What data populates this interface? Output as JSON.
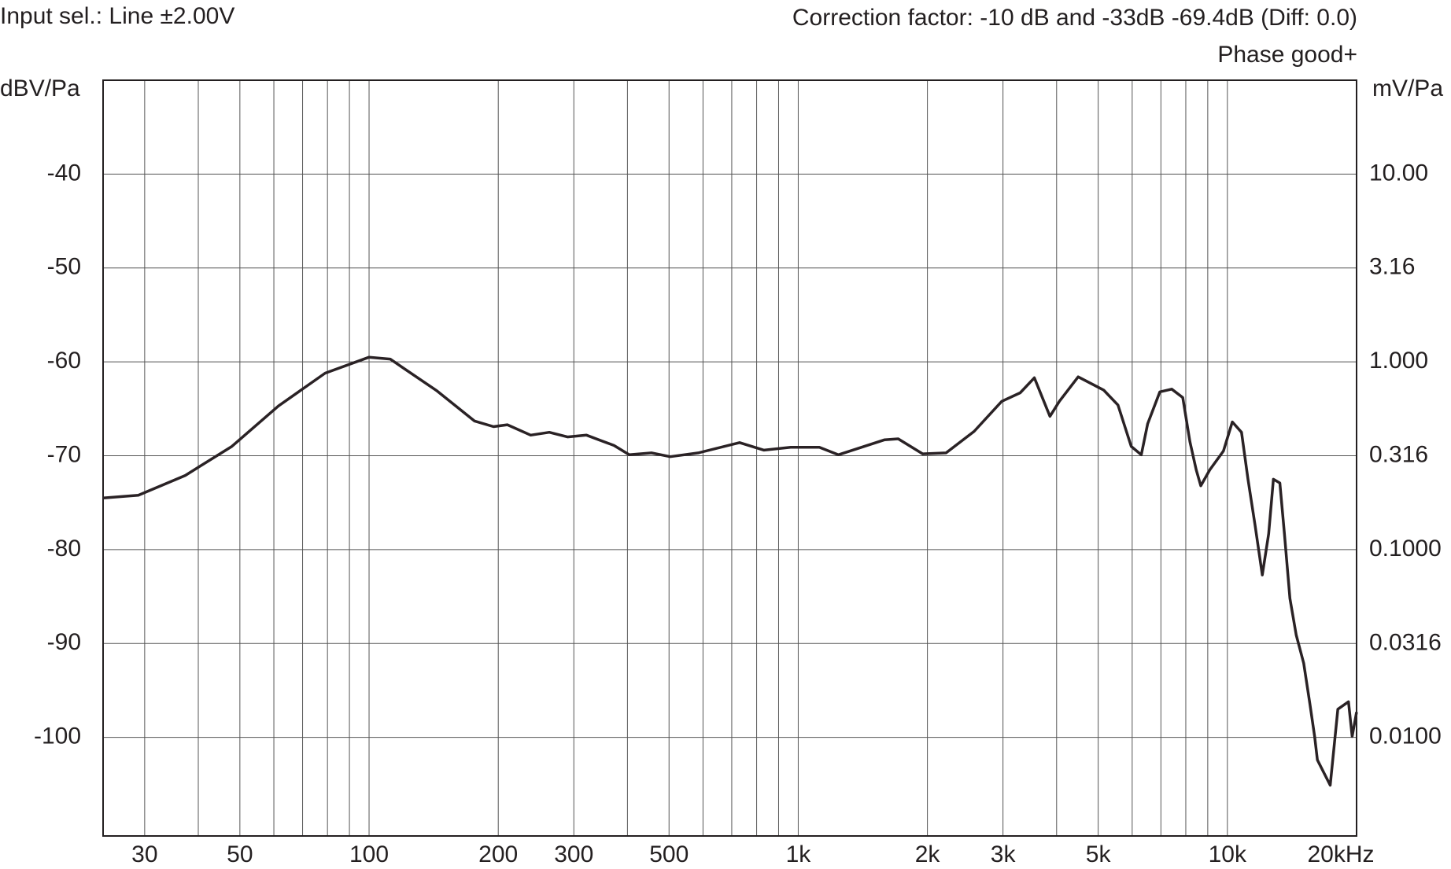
{
  "chart_data": {
    "type": "line",
    "header_left": "Input sel.: Line ±2.00V",
    "header_right": "Correction factor: -10 dB  and -33dB -69.4dB (Diff: 0.0)",
    "header_right2": "Phase good+",
    "ylabel": "dBV/Pa",
    "y2label": "mV/Pa",
    "xscale": "log",
    "y2scale": "log",
    "grid": true,
    "xlim": [
      24,
      20000
    ],
    "ylim": [
      -110.5,
      -30
    ],
    "y2lim": [
      0.002985,
      31.62
    ],
    "xticks": [
      30,
      50,
      100,
      200,
      300,
      500,
      {
        "value": 1000,
        "label": "1k"
      },
      {
        "value": 2000,
        "label": "2k"
      },
      {
        "value": 3000,
        "label": "3k"
      },
      {
        "value": 5000,
        "label": "5k"
      },
      {
        "value": 10000,
        "label": "10k"
      },
      {
        "value": 20000,
        "label": "20kHz"
      }
    ],
    "xgrid": [
      30,
      40,
      50,
      60,
      70,
      80,
      90,
      100,
      200,
      300,
      400,
      500,
      600,
      700,
      800,
      900,
      1000,
      2000,
      3000,
      4000,
      5000,
      6000,
      7000,
      8000,
      9000,
      10000
    ],
    "yticks": [
      -40,
      -50,
      -60,
      -70,
      -80,
      -90,
      -100
    ],
    "y2ticks": [
      {
        "value": 10,
        "label": "10.00"
      },
      3.16,
      {
        "value": 1,
        "label": "1.000"
      },
      0.316,
      {
        "value": 0.1,
        "label": "0.1000"
      },
      0.0316,
      {
        "value": 0.01,
        "label": "0.0100"
      }
    ],
    "x": [
      24,
      29,
      37.3,
      47.9,
      61.5,
      79,
      100,
      112,
      144,
      176,
      195,
      210,
      238,
      263,
      290,
      321,
      372,
      404,
      455,
      503,
      585,
      730,
      832,
      960,
      1120,
      1240,
      1590,
      1710,
      1950,
      2210,
      2570,
      2980,
      3290,
      3550,
      3860,
      4060,
      4490,
      5150,
      5560,
      5970,
      6300,
      6520,
      6960,
      7420,
      7870,
      8180,
      8460,
      8670,
      9100,
      9790,
      10270,
      10790,
      11170,
      11600,
      12060,
      12480,
      12800,
      13250,
      13580,
      13990,
      14470,
      15060,
      15580,
      15970,
      16210,
      17360,
      18090,
      19150,
      19530,
      20000
    ],
    "series": [
      {
        "color": "#2a2225",
        "values": [
          -74.5,
          -74.2,
          -72.1,
          -69.0,
          -64.7,
          -61.2,
          -59.5,
          -59.7,
          -63.1,
          -66.3,
          -66.9,
          -66.7,
          -67.8,
          -67.5,
          -68.0,
          -67.8,
          -68.9,
          -69.9,
          -69.7,
          -70.1,
          -69.7,
          -68.6,
          -69.4,
          -69.1,
          -69.1,
          -69.9,
          -68.3,
          -68.2,
          -69.8,
          -69.7,
          -67.4,
          -64.2,
          -63.3,
          -61.7,
          -65.8,
          -64.2,
          -61.6,
          -63.0,
          -64.6,
          -69.0,
          -69.9,
          -66.6,
          -63.2,
          -62.9,
          -63.8,
          -68.5,
          -71.5,
          -73.2,
          -71.5,
          -69.5,
          -66.4,
          -67.5,
          -72.5,
          -77.4,
          -82.7,
          -78.3,
          -72.5,
          -72.9,
          -78.3,
          -85.2,
          -89.1,
          -92.1,
          -96.5,
          -99.9,
          -102.4,
          -105.1,
          -97.0,
          -96.2,
          -99.9,
          -97.3
        ]
      }
    ]
  }
}
